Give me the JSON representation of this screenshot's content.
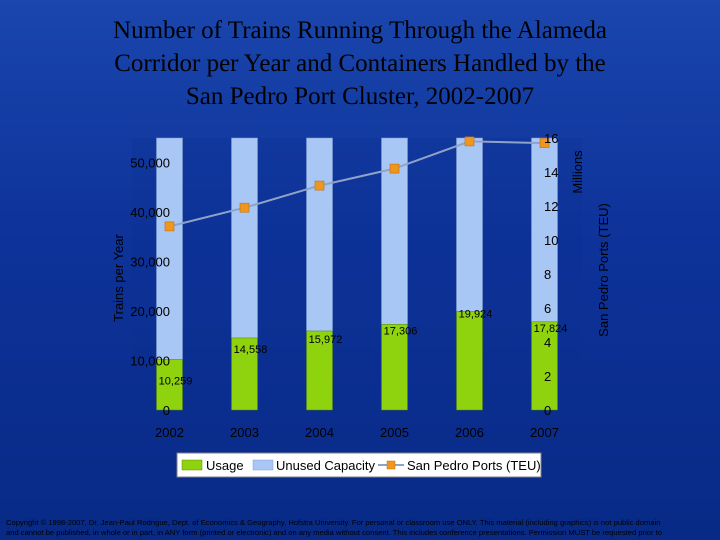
{
  "title": {
    "line1": "Number of Trains Running Through the Alameda",
    "line2": "Corridor per Year and Containers Handled by the",
    "line3": "San Pedro Port Cluster, 2002-2007"
  },
  "chart_data": {
    "type": "bar",
    "categories": [
      "2002",
      "2003",
      "2004",
      "2005",
      "2006",
      "2007"
    ],
    "series": [
      {
        "name": "Usage",
        "type": "bar",
        "stacked": true,
        "axis": "left",
        "color": "#8fd20e",
        "values": [
          10259,
          14558,
          15972,
          17306,
          19924,
          17824
        ],
        "labels": [
          "10,259",
          "14,558",
          "15,972",
          "17,306",
          "19,924",
          "17,824"
        ]
      },
      {
        "name": "Unused Capacity",
        "type": "bar",
        "stacked": true,
        "axis": "left",
        "color": "#a9c7f5",
        "values": [
          44741,
          40442,
          39028,
          37694,
          35076,
          37176
        ]
      },
      {
        "name": "San Pedro Ports (TEU)",
        "type": "line",
        "axis": "right",
        "color": "#f0961e",
        "line_color": "#8ea3c7",
        "values": [
          10.8,
          11.9,
          13.2,
          14.2,
          15.8,
          15.7
        ]
      }
    ],
    "ylabel": "Trains per Year",
    "y2label": "San Pedro Ports (TEU)",
    "y2unit": "Millions",
    "ylim": [
      0,
      55000
    ],
    "y2lim": [
      0,
      16
    ],
    "yticks": [
      0,
      10000,
      20000,
      30000,
      40000,
      50000
    ],
    "ytick_labels": [
      "0",
      "10,000",
      "20,000",
      "30,000",
      "40,000",
      "50,000"
    ],
    "y2ticks": [
      0,
      2,
      4,
      6,
      8,
      10,
      12,
      14,
      16
    ],
    "y2tick_labels": [
      "0",
      "2",
      "4",
      "6",
      "8",
      "10",
      "12",
      "14",
      "16"
    ],
    "legend": [
      "Usage",
      "Unused Capacity",
      "San Pedro Ports (TEU)"
    ],
    "legend_position": "bottom",
    "grid": false
  },
  "copyright": {
    "line1": "Copyright © 1998-2007, Dr. Jean-Paul Rodrigue, Dept. of Economics & Geography, Hofstra University. For personal or classroom use ONLY. This material (including graphics) is not public domain",
    "line2": "and cannot be published, in whole or in part, in ANY form (printed or electronic) and on any media without consent. This includes conference presentations. Permission MUST be requested prior to"
  }
}
